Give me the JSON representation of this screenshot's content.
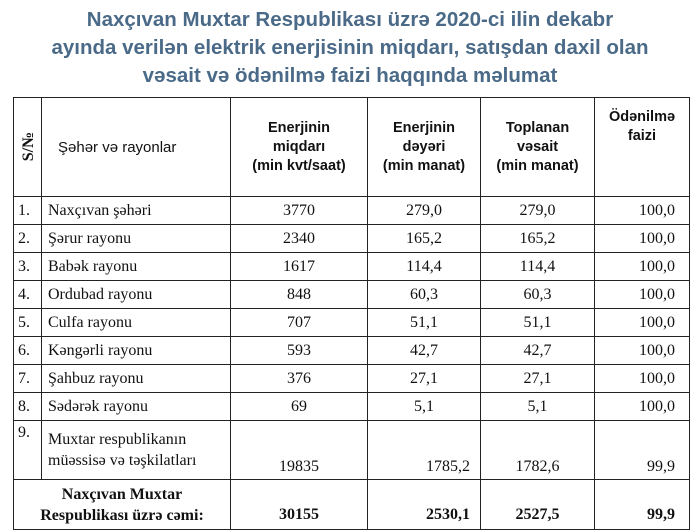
{
  "title": {
    "line1": "Naxçıvan Muxtar Respublikası üzrə 2020-ci ilin dekabr",
    "line2": "ayında verilən elektrik enerjisinin miqdarı, satışdan daxil olan",
    "line3": "vəsait və ödənilmə faizi haqqında məlumat"
  },
  "headers": {
    "index": "S/№",
    "name": "Şəhər və rayonlar",
    "amount": [
      "Enerjinin",
      "miqdarı",
      "(min kvt/saat)"
    ],
    "value": [
      "Enerjinin",
      "dəyəri",
      "(min manat)"
    ],
    "collected": [
      "Toplanan",
      "vəsait",
      "(min manat)"
    ],
    "percent": [
      "Ödənilmə",
      "faizi"
    ]
  },
  "rows": [
    {
      "idx": "1.",
      "name": "Naxçıvan şəhəri",
      "amount": "3770",
      "value": "279,0",
      "collected": "279,0",
      "percent": "100,0"
    },
    {
      "idx": "2.",
      "name": "Şərur rayonu",
      "amount": "2340",
      "value": "165,2",
      "collected": "165,2",
      "percent": "100,0"
    },
    {
      "idx": "3.",
      "name": "Babək rayonu",
      "amount": "1617",
      "value": "114,4",
      "collected": "114,4",
      "percent": "100,0"
    },
    {
      "idx": "4.",
      "name": "Ordubad rayonu",
      "amount": "848",
      "value": "60,3",
      "collected": "60,3",
      "percent": "100,0"
    },
    {
      "idx": "5.",
      "name": "Culfa rayonu",
      "amount": "707",
      "value": "51,1",
      "collected": "51,1",
      "percent": "100,0"
    },
    {
      "idx": "6.",
      "name": "Kəngərli rayonu",
      "amount": "593",
      "value": "42,7",
      "collected": "42,7",
      "percent": "100,0"
    },
    {
      "idx": "7.",
      "name": "Şahbuz rayonu",
      "amount": "376",
      "value": "27,1",
      "collected": "27,1",
      "percent": "100,0"
    },
    {
      "idx": "8.",
      "name": "Sədərək rayonu",
      "amount": "69",
      "value": "5,1",
      "collected": "5,1",
      "percent": "100,0"
    }
  ],
  "row9": {
    "idx": "9.",
    "name_line1": "Muxtar respublikanın",
    "name_line2": "müəssisə və təşkilatları",
    "amount": "19835",
    "value": "1785,2",
    "collected": "1782,6",
    "percent": "99,9"
  },
  "total": {
    "label_line1": "Naxçıvan Muxtar",
    "label_line2": "Respublikası üzrə cəmi:",
    "amount": "30155",
    "value": "2530,1",
    "collected": "2527,5",
    "percent": "99,9"
  }
}
